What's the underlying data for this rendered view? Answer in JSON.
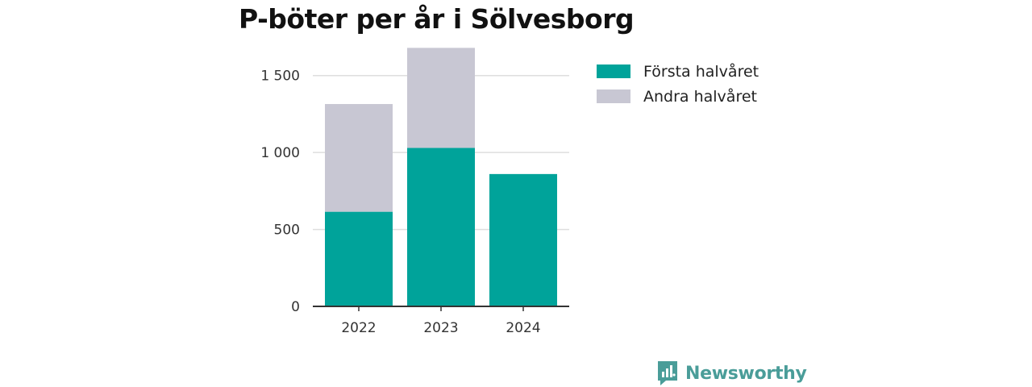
{
  "chart_data": {
    "type": "bar",
    "stacked": true,
    "title": "P-böter per år i Sölvesborg",
    "xlabel": "",
    "ylabel": "",
    "categories": [
      "2022",
      "2023",
      "2024"
    ],
    "series": [
      {
        "name": "Första halvåret",
        "values": [
          615,
          1030,
          860
        ],
        "color": "#00a39a"
      },
      {
        "name": "Andra halvåret",
        "values": [
          700,
          650,
          0
        ],
        "color": "#c8c7d3"
      }
    ],
    "ylim": [
      0,
      1750
    ],
    "yticks": [
      0,
      500,
      1000,
      1500
    ],
    "ytick_labels": [
      "0",
      "500",
      "1 000",
      "1 500"
    ],
    "grid": true,
    "legend": "right"
  },
  "brand": {
    "name": "Newsworthy",
    "color": "#4a9d99",
    "icon": "newsworthy-logo-icon"
  }
}
